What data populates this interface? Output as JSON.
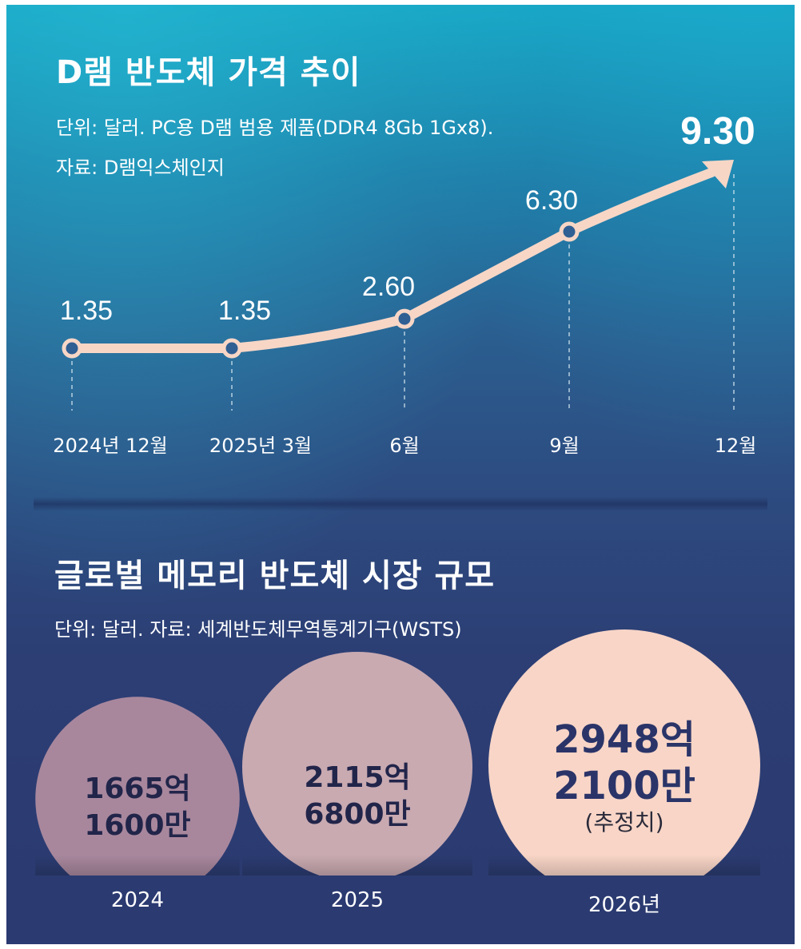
{
  "chart_data": [
    {
      "type": "line",
      "title": "D램 반도체 가격 추이",
      "subtitle": "단위: 달러. PC용 D램 범용 제품(DDR4 8Gb 1Gx8).",
      "source": "자료: D램익스체인지",
      "categories": [
        "2024년 12월",
        "2025년 3월",
        "6월",
        "9월",
        "12월"
      ],
      "values": [
        1.35,
        1.35,
        2.6,
        6.3,
        9.3
      ],
      "value_labels": [
        "1.35",
        "1.35",
        "2.60",
        "6.30",
        "9.30"
      ],
      "ylim": [
        0,
        10
      ],
      "grid": false,
      "legend": "none",
      "line_color": "#f7d6c6",
      "marker_fill": "#2f5f93"
    },
    {
      "type": "bubble",
      "title": "글로벌 메모리 반도체 시장 규모",
      "subtitle": "단위: 달러. 자료: 세계반도체무역통계기구(WSTS)",
      "categories": [
        "2024",
        "2025",
        "2026년"
      ],
      "values": [
        166516000000,
        211568000000,
        294821000000
      ],
      "value_labels": [
        [
          "1665억",
          "1600만"
        ],
        [
          "2115억",
          "6800만"
        ],
        [
          "2948억",
          "2100만"
        ]
      ],
      "notes": [
        "",
        "",
        "(추정치)"
      ],
      "colors": [
        "#a8879d",
        "#c9aab1",
        "#f8d5c7"
      ]
    }
  ]
}
